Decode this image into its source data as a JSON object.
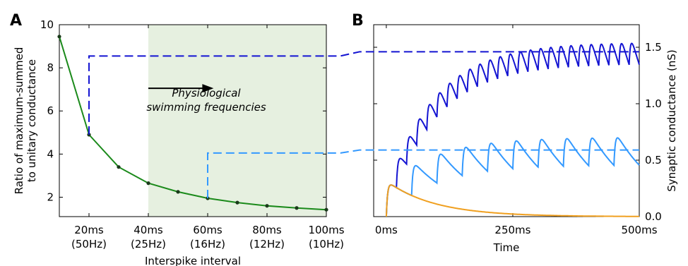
{
  "chart_data": [
    {
      "type": "line",
      "panel_label": "A",
      "xlabel": "Interspike interval",
      "ylabel_line1": "Ratio of maximum-summed",
      "ylabel_line2": "to unitary conductance",
      "x_tick_labels": [
        {
          "x": 20,
          "line1": "20ms",
          "line2": "(50Hz)"
        },
        {
          "x": 40,
          "line1": "40ms",
          "line2": "(25Hz)"
        },
        {
          "x": 60,
          "line1": "60ms",
          "line2": "(16Hz)"
        },
        {
          "x": 80,
          "line1": "80ms",
          "line2": "(12Hz)"
        },
        {
          "x": 100,
          "line1": "100ms",
          "line2": "(10Hz)"
        }
      ],
      "y_ticks": [
        2,
        4,
        6,
        8,
        10
      ],
      "xlim": [
        10,
        100
      ],
      "ylim": [
        1.1,
        10
      ],
      "shaded_region": {
        "x": [
          40,
          100
        ],
        "color": "#e6f0e0"
      },
      "annotation_line1": "Physiological",
      "annotation_line2": "swimming frequencies",
      "arrow_x": [
        40,
        62
      ],
      "arrow_y": 7.05,
      "series": [
        {
          "color": "#1b8a1b",
          "x": [
            10,
            20,
            30,
            40,
            50,
            60,
            70,
            80,
            90,
            100
          ],
          "y": [
            9.45,
            4.9,
            3.4,
            2.65,
            2.25,
            1.95,
            1.75,
            1.6,
            1.5,
            1.42
          ]
        }
      ]
    },
    {
      "type": "line",
      "panel_label": "B",
      "xlabel": "Time",
      "ylabel": "Synaptic conductance (nS)",
      "x_ticks": [
        {
          "value": 0,
          "label": "0ms"
        },
        {
          "value": 250,
          "label": "250ms"
        },
        {
          "value": 500,
          "label": "500ms"
        }
      ],
      "y_ticks": [
        {
          "value": 0.0,
          "label": "0.0"
        },
        {
          "value": 0.5,
          "label": "0.5"
        },
        {
          "value": 1.0,
          "label": "1.0"
        },
        {
          "value": 1.5,
          "label": "1.5"
        }
      ],
      "xlim": [
        -25,
        500
      ],
      "ylim": [
        0,
        1.7
      ],
      "series": [
        {
          "color": "#1414d2",
          "interval_ms": 20,
          "peak_nS": 0.28,
          "tau_rise_ms": 2.5,
          "tau_decay_ms": 95,
          "t_start_ms": 0
        },
        {
          "color": "#3399ff",
          "interval_ms": 50,
          "peak_nS": 0.28,
          "tau_rise_ms": 2.5,
          "tau_decay_ms": 95,
          "t_start_ms": 0
        },
        {
          "color": "#f0a020",
          "interval_ms": 0,
          "peak_nS": 0.28,
          "tau_rise_ms": 2.5,
          "tau_decay_ms": 95,
          "t_start_ms": 0
        }
      ]
    }
  ],
  "connectors": [
    {
      "color": "#1414d2",
      "value_ratio": 8.55,
      "value_nS": 1.46,
      "at_x_ms": 20
    },
    {
      "color": "#3399ff",
      "value_ratio": 4.05,
      "value_nS": 0.59,
      "at_x_ms": 60
    }
  ]
}
